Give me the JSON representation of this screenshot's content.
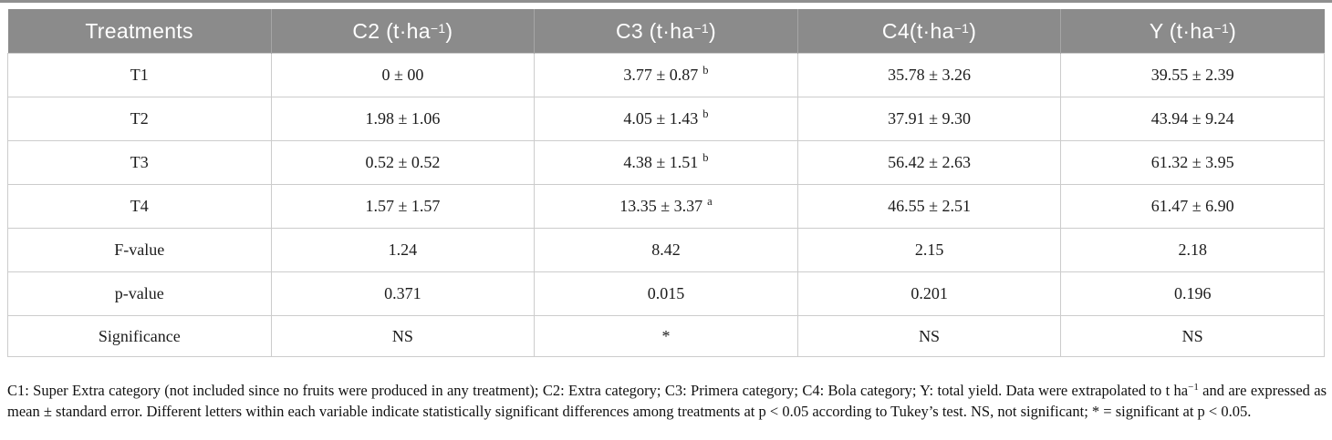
{
  "table": {
    "headers": [
      {
        "base": "Treatments",
        "sup": "",
        "close": ""
      },
      {
        "base": "C2 (t·ha",
        "sup": "−1",
        "close": ")"
      },
      {
        "base": "C3 (t·ha",
        "sup": "−1",
        "close": ")"
      },
      {
        "base": "C4(t·ha",
        "sup": "−1",
        "close": ")"
      },
      {
        "base": "Y (t·ha",
        "sup": "−1",
        "close": ")"
      }
    ],
    "rows": [
      {
        "cells": [
          {
            "text": "T1",
            "sup": ""
          },
          {
            "text": "0 ± 00",
            "sup": ""
          },
          {
            "text": "3.77 ± 0.87",
            "sup": "b"
          },
          {
            "text": "35.78 ± 3.26",
            "sup": ""
          },
          {
            "text": "39.55 ± 2.39",
            "sup": ""
          }
        ]
      },
      {
        "cells": [
          {
            "text": "T2",
            "sup": ""
          },
          {
            "text": "1.98 ± 1.06",
            "sup": ""
          },
          {
            "text": "4.05 ± 1.43",
            "sup": "b"
          },
          {
            "text": "37.91 ± 9.30",
            "sup": ""
          },
          {
            "text": "43.94 ± 9.24",
            "sup": ""
          }
        ]
      },
      {
        "cells": [
          {
            "text": "T3",
            "sup": ""
          },
          {
            "text": "0.52 ± 0.52",
            "sup": ""
          },
          {
            "text": "4.38 ± 1.51",
            "sup": "b"
          },
          {
            "text": "56.42 ± 2.63",
            "sup": ""
          },
          {
            "text": "61.32 ± 3.95",
            "sup": ""
          }
        ]
      },
      {
        "cells": [
          {
            "text": "T4",
            "sup": ""
          },
          {
            "text": "1.57 ± 1.57",
            "sup": ""
          },
          {
            "text": "13.35 ± 3.37",
            "sup": "a"
          },
          {
            "text": "46.55 ± 2.51",
            "sup": ""
          },
          {
            "text": "61.47 ± 6.90",
            "sup": ""
          }
        ]
      },
      {
        "cells": [
          {
            "text": "F-value",
            "sup": ""
          },
          {
            "text": "1.24",
            "sup": ""
          },
          {
            "text": "8.42",
            "sup": ""
          },
          {
            "text": "2.15",
            "sup": ""
          },
          {
            "text": "2.18",
            "sup": ""
          }
        ]
      },
      {
        "cells": [
          {
            "text": "p-value",
            "sup": ""
          },
          {
            "text": "0.371",
            "sup": ""
          },
          {
            "text": "0.015",
            "sup": ""
          },
          {
            "text": "0.201",
            "sup": ""
          },
          {
            "text": "0.196",
            "sup": ""
          }
        ]
      },
      {
        "cells": [
          {
            "text": "Significance",
            "sup": ""
          },
          {
            "text": "NS",
            "sup": ""
          },
          {
            "text": "*",
            "sup": ""
          },
          {
            "text": "NS",
            "sup": ""
          },
          {
            "text": "NS",
            "sup": ""
          }
        ]
      }
    ]
  },
  "footnote": {
    "part1": "C1: Super Extra category (not included since no fruits were produced in any treatment); C2: Extra category; C3: Primera category; C4: Bola category; Y: total yield. Data were extrapolated to t ha",
    "sup": "−1",
    "part2": " and are expressed as mean ± standard error. Different letters within each variable indicate statistically significant differences among treatments at p < 0.05 according to Tukey’s test. NS, not significant; * = significant at p < 0.05."
  },
  "colors": {
    "header_bg": "#8b8b8b",
    "header_text": "#ffffff",
    "cell_border": "#cccccc",
    "top_rule": "#8f8f8f"
  }
}
